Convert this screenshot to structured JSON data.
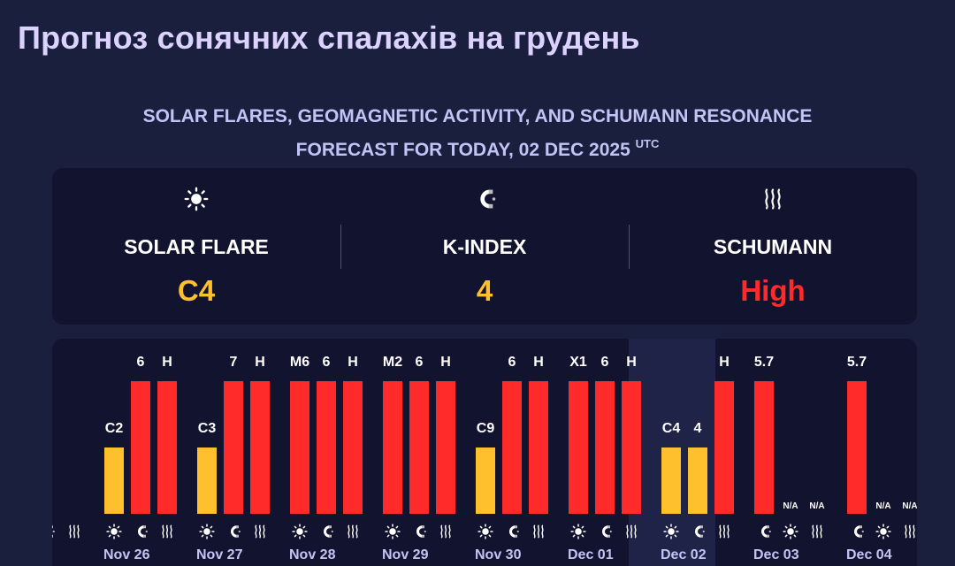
{
  "page_title": "Прогноз сонячних спалахів на грудень",
  "subtitle": {
    "line1": "SOLAR FLARES, GEOMAGNETIC ACTIVITY, AND SCHUMANN RESONANCE",
    "line2": "FORECAST FOR TODAY, 02 DEC 2025",
    "utc": "UTC"
  },
  "summary": [
    {
      "label": "SOLAR FLARE",
      "value": "C4",
      "icon": "sun-icon",
      "color": "#ffc02d"
    },
    {
      "label": "K-INDEX",
      "value": "4",
      "icon": "magnet-icon",
      "color": "#ffc02d"
    },
    {
      "label": "SCHUMANN",
      "value": "High",
      "icon": "waves-icon",
      "color": "#ff2b2b"
    }
  ],
  "colors": {
    "yellow": "#ffc02d",
    "red": "#ff2b2b",
    "today_bg": "#1f2348"
  },
  "days": [
    {
      "date": "",
      "bars": [
        {
          "kind": "solar",
          "label": "",
          "level": 0.5,
          "color": "#ffc02d"
        },
        {
          "kind": "kindex",
          "label": null,
          "level": null
        },
        {
          "kind": "schumann",
          "label": null,
          "level": null
        }
      ]
    },
    {
      "date": "Nov 26",
      "bars": [
        {
          "kind": "solar",
          "label": "C2",
          "level": 0.5,
          "color": "#ffc02d"
        },
        {
          "kind": "kindex",
          "label": "6",
          "level": 1,
          "color": "#ff2b2b"
        },
        {
          "kind": "schumann",
          "label": "H",
          "level": 1,
          "color": "#ff2b2b"
        }
      ]
    },
    {
      "date": "Nov 27",
      "bars": [
        {
          "kind": "solar",
          "label": "C3",
          "level": 0.5,
          "color": "#ffc02d"
        },
        {
          "kind": "kindex",
          "label": "7",
          "level": 1,
          "color": "#ff2b2b"
        },
        {
          "kind": "schumann",
          "label": "H",
          "level": 1,
          "color": "#ff2b2b"
        }
      ]
    },
    {
      "date": "Nov 28",
      "bars": [
        {
          "kind": "solar",
          "label": "M6",
          "level": 1,
          "color": "#ff2b2b"
        },
        {
          "kind": "kindex",
          "label": "6",
          "level": 1,
          "color": "#ff2b2b"
        },
        {
          "kind": "schumann",
          "label": "H",
          "level": 1,
          "color": "#ff2b2b"
        }
      ]
    },
    {
      "date": "Nov 29",
      "bars": [
        {
          "kind": "solar",
          "label": "M2",
          "level": 1,
          "color": "#ff2b2b"
        },
        {
          "kind": "kindex",
          "label": "6",
          "level": 1,
          "color": "#ff2b2b"
        },
        {
          "kind": "schumann",
          "label": "H",
          "level": 1,
          "color": "#ff2b2b"
        }
      ]
    },
    {
      "date": "Nov 30",
      "bars": [
        {
          "kind": "solar",
          "label": "C9",
          "level": 0.5,
          "color": "#ffc02d"
        },
        {
          "kind": "kindex",
          "label": "6",
          "level": 1,
          "color": "#ff2b2b"
        },
        {
          "kind": "schumann",
          "label": "H",
          "level": 1,
          "color": "#ff2b2b"
        }
      ]
    },
    {
      "date": "Dec 01",
      "bars": [
        {
          "kind": "solar",
          "label": "X1",
          "level": 1,
          "color": "#ff2b2b"
        },
        {
          "kind": "kindex",
          "label": "6",
          "level": 1,
          "color": "#ff2b2b"
        },
        {
          "kind": "schumann",
          "label": "H",
          "level": 1,
          "color": "#ff2b2b"
        }
      ]
    },
    {
      "date": "Dec 02",
      "today": true,
      "bars": [
        {
          "kind": "solar",
          "label": "C4",
          "level": 0.5,
          "color": "#ffc02d"
        },
        {
          "kind": "kindex",
          "label": "4",
          "level": 0.5,
          "color": "#ffc02d"
        },
        {
          "kind": "schumann",
          "label": "H",
          "level": 1,
          "color": "#ff2b2b"
        }
      ]
    },
    {
      "date": "Dec 03",
      "bars": [
        {
          "kind": "kindex",
          "label": "5.7",
          "level": 1,
          "color": "#ff2b2b"
        },
        {
          "kind": "solar",
          "label": "N/A",
          "level": 0
        },
        {
          "kind": "schumann",
          "label": "N/A",
          "level": 0
        }
      ]
    },
    {
      "date": "Dec 04",
      "bars": [
        {
          "kind": "kindex",
          "label": "5.7",
          "level": 1,
          "color": "#ff2b2b"
        },
        {
          "kind": "solar",
          "label": "N/A",
          "level": 0
        },
        {
          "kind": "schumann",
          "label": "N/A",
          "level": 0
        }
      ]
    }
  ]
}
